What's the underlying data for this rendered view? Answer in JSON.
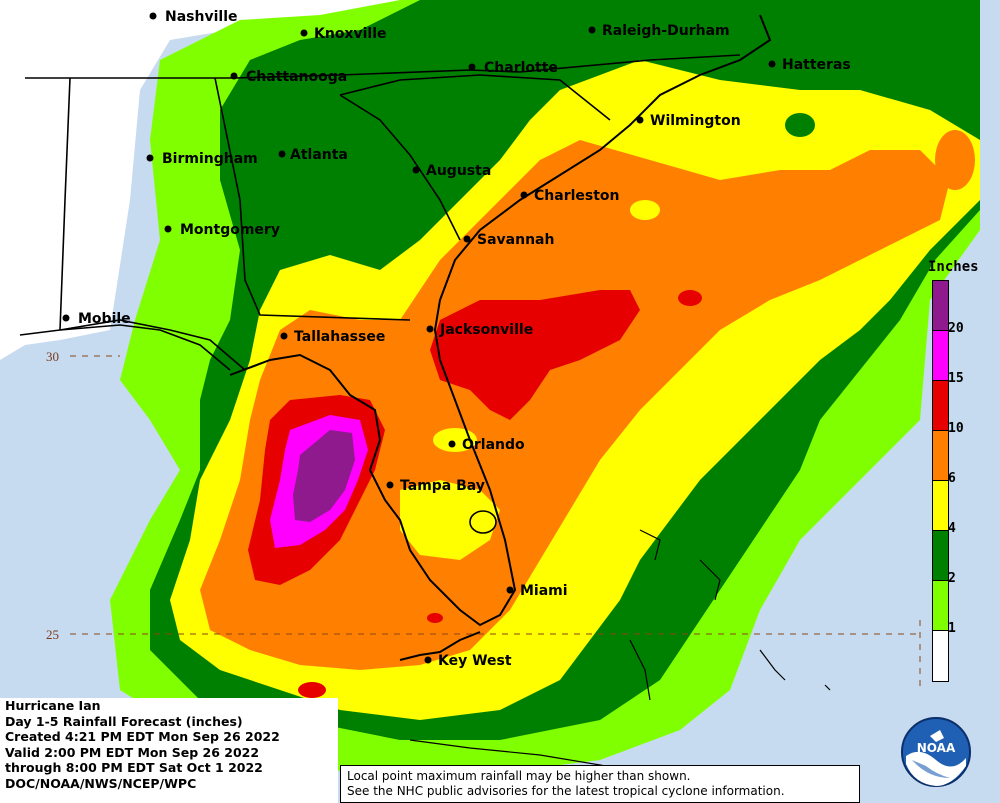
{
  "map": {
    "title": "Hurricane Ian",
    "product": "Day 1-5 Rainfall Forecast (inches)",
    "created": "Created 4:21 PM EDT Mon Sep 26 2022",
    "valid": "Valid 2:00 PM EDT Mon Sep 26 2022",
    "through": "through 8:00 PM EDT Sat Oct 1 2022",
    "source": "DOC/NOAA/NWS/NCEP/WPC"
  },
  "disclaimer": {
    "line1": "Local point maximum rainfall may be higher than shown.",
    "line2": "See the NHC public advisories for the latest tropical cyclone information."
  },
  "legend": {
    "title": "Inches",
    "bins": [
      {
        "label": "",
        "color": "#8e1a8e"
      },
      {
        "label": "20",
        "color": "#ff00ff"
      },
      {
        "label": "15",
        "color": "#e60000"
      },
      {
        "label": "10",
        "color": "#ff8000"
      },
      {
        "label": "6",
        "color": "#ffff00"
      },
      {
        "label": "4",
        "color": "#008000"
      },
      {
        "label": "2",
        "color": "#80ff00"
      },
      {
        "label": "1",
        "color": "#ffffff"
      }
    ]
  },
  "latitudes": [
    {
      "label": "30"
    },
    {
      "label": "25"
    }
  ],
  "cities": [
    {
      "name": "Nashville"
    },
    {
      "name": "Knoxville"
    },
    {
      "name": "Raleigh-Durham"
    },
    {
      "name": "Chattanooga"
    },
    {
      "name": "Charlotte"
    },
    {
      "name": "Hatteras"
    },
    {
      "name": "Wilmington"
    },
    {
      "name": "Birmingham"
    },
    {
      "name": "Atlanta"
    },
    {
      "name": "Augusta"
    },
    {
      "name": "Charleston"
    },
    {
      "name": "Montgomery"
    },
    {
      "name": "Savannah"
    },
    {
      "name": "Mobile"
    },
    {
      "name": "Tallahassee"
    },
    {
      "name": "Jacksonville"
    },
    {
      "name": "Orlando"
    },
    {
      "name": "Tampa Bay"
    },
    {
      "name": "Miami"
    },
    {
      "name": "Key West"
    }
  ],
  "colors": {
    "land_no_rain": "#ffffff",
    "ocean": "#c6daf0",
    "state_lines": "#000000",
    "lat_grid": "#8b4513"
  },
  "logo": {
    "text": "NOAA"
  }
}
